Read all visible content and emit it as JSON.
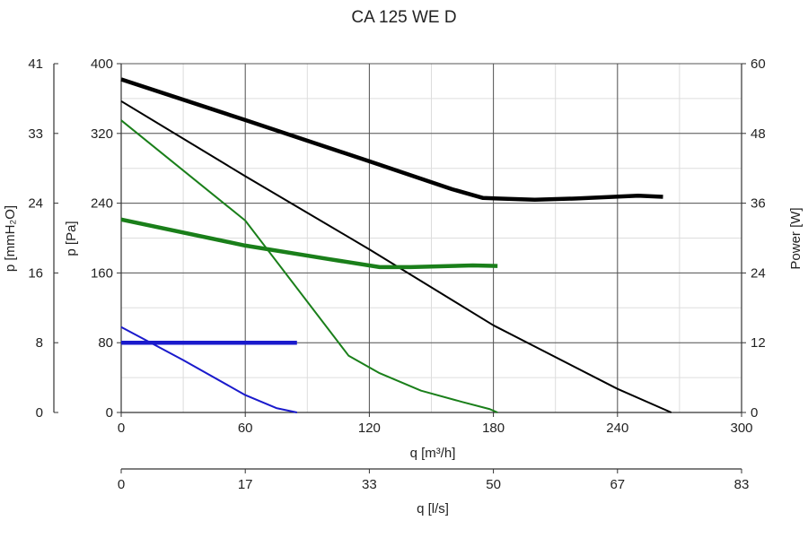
{
  "chart_data": {
    "type": "line",
    "title": "CA 125 WE D",
    "x_axis_primary": {
      "label": "q [m³/h]",
      "range": [
        0,
        300
      ],
      "ticks": [
        0,
        60,
        120,
        180,
        240,
        300
      ],
      "tick_labels": [
        "0",
        "60",
        "120",
        "180",
        "240",
        "300"
      ]
    },
    "x_axis_secondary": {
      "label": "q [l/s]",
      "tick_labels": [
        "0",
        "17",
        "33",
        "50",
        "67",
        "83"
      ]
    },
    "y_axis_pressure": {
      "label": "p [Pa]",
      "range": [
        0,
        400
      ],
      "ticks": [
        0,
        80,
        160,
        240,
        320,
        400
      ],
      "tick_labels": [
        "0",
        "80",
        "160",
        "240",
        "320",
        "400"
      ]
    },
    "y_axis_pressure_mmh2o": {
      "label": "p [mmH₂O]",
      "tick_labels": [
        "0",
        "8",
        "16",
        "24",
        "33",
        "41"
      ]
    },
    "y_axis_power": {
      "label": "Power [W]",
      "range": [
        0,
        60
      ],
      "ticks": [
        0,
        12,
        24,
        36,
        48,
        60
      ],
      "tick_labels": [
        "0",
        "12",
        "24",
        "36",
        "48",
        "60"
      ]
    },
    "grid": true,
    "series": [
      {
        "kind": "pressure",
        "color": "#000000",
        "points": [
          [
            0,
            357
          ],
          [
            60,
            271
          ],
          [
            120,
            187
          ],
          [
            180,
            100
          ],
          [
            240,
            27
          ],
          [
            266,
            0
          ]
        ]
      },
      {
        "kind": "power",
        "color": "#000000",
        "points": [
          [
            0,
            57.3
          ],
          [
            60,
            50.3
          ],
          [
            120,
            43.2
          ],
          [
            160,
            38.4
          ],
          [
            175,
            36.9
          ],
          [
            182,
            36.8
          ],
          [
            200,
            36.6
          ],
          [
            220,
            36.8
          ],
          [
            250,
            37.3
          ],
          [
            262,
            37.1
          ]
        ]
      },
      {
        "kind": "pressure",
        "color": "#1a7f1a",
        "points": [
          [
            0,
            335
          ],
          [
            60,
            220
          ],
          [
            110,
            65
          ],
          [
            125,
            45
          ],
          [
            145,
            25
          ],
          [
            165,
            12
          ],
          [
            178,
            4
          ],
          [
            182,
            0
          ]
        ]
      },
      {
        "kind": "power",
        "color": "#1a7f1a",
        "points": [
          [
            0,
            33.2
          ],
          [
            60,
            28.7
          ],
          [
            100,
            26.4
          ],
          [
            125,
            25.0
          ],
          [
            140,
            25.0
          ],
          [
            160,
            25.2
          ],
          [
            170,
            25.3
          ],
          [
            182,
            25.2
          ]
        ]
      },
      {
        "kind": "pressure",
        "color": "#1a1acc",
        "points": [
          [
            0,
            98
          ],
          [
            30,
            60
          ],
          [
            60,
            20
          ],
          [
            75,
            5
          ],
          [
            85,
            0
          ]
        ]
      },
      {
        "kind": "power",
        "color": "#1a1acc",
        "points": [
          [
            0,
            12.0
          ],
          [
            85,
            12.0
          ]
        ]
      }
    ]
  }
}
